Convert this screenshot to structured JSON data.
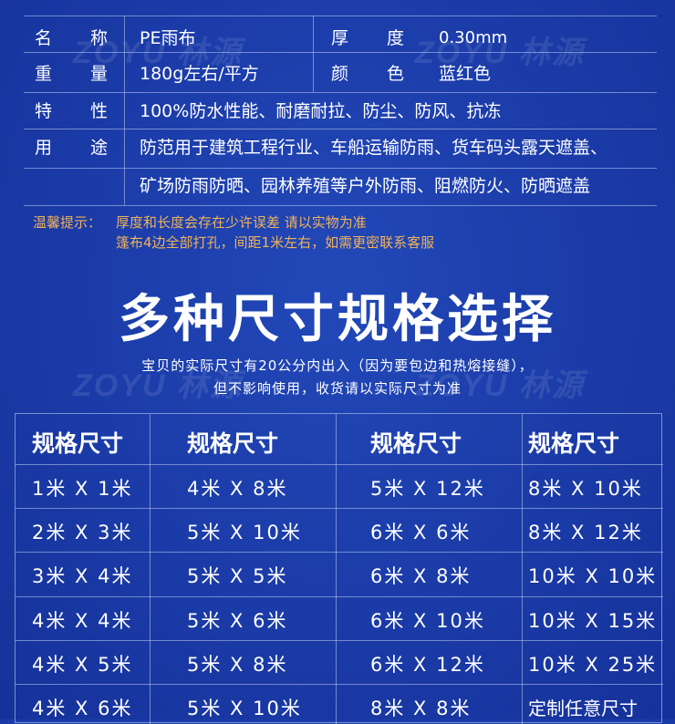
{
  "watermark": "ZOYU 林源",
  "specs": {
    "rows": [
      {
        "label1": "名",
        "label2": "称",
        "value": "PE雨布",
        "label3": "厚",
        "label4": "度",
        "value2": "0.30mm"
      },
      {
        "label1": "重",
        "label2": "量",
        "value": "180g左右/平方",
        "label3": "颜",
        "label4": "色",
        "value2": "蓝红色"
      },
      {
        "label1": "特",
        "label2": "性",
        "value": "100%防水性能、耐磨耐拉、防尘、防风、抗冻"
      },
      {
        "label1": "用",
        "label2": "途",
        "value": "防范用于建筑工程行业、车船运输防雨、货车码头露天遮盖、",
        "value_cont": "矿场防雨防晒、园林养殖等户外防雨、阻燃防火、防晒遮盖"
      }
    ]
  },
  "notice": {
    "label": "温馨提示：",
    "line1": "厚度和长度会存在少许误差 请以实物为准",
    "line2": "篷布4边全部打孔，间距1米左右，如需更密联系客服"
  },
  "section": {
    "title": "多种尺寸规格选择",
    "subtitle1": "宝贝的实际尺寸有20公分内出入（因为要包边和热熔接缝），",
    "subtitle2": "但不影响使用，收货请以实际尺寸为准"
  },
  "size_table": {
    "headers": [
      "规格尺寸",
      "规格尺寸",
      "规格尺寸",
      "规格尺寸"
    ],
    "rows": [
      [
        "1米 X 1米",
        "4米 X 8米",
        "5米 X 12米",
        "8米 X 10米"
      ],
      [
        "2米 X 3米",
        "5米 X 10米",
        "6米 X 6米",
        "8米 X 12米"
      ],
      [
        "3米 X 4米",
        "5米 X 5米",
        "6米 X 8米",
        "10米 X 10米"
      ],
      [
        "4米 X 4米",
        "5米 X 6米",
        "6米 X 10米",
        "10米 X 15米"
      ],
      [
        "4米 X 5米",
        "5米 X 8米",
        "6米 X 12米",
        "10米 X 25米"
      ],
      [
        "4米 X 6米",
        "5米 X 10米",
        "8米 X 8米",
        "定制任意尺寸"
      ]
    ]
  },
  "colors": {
    "background": "#1b3ca8",
    "notice": "#f0b25a",
    "text": "#ffffff"
  }
}
